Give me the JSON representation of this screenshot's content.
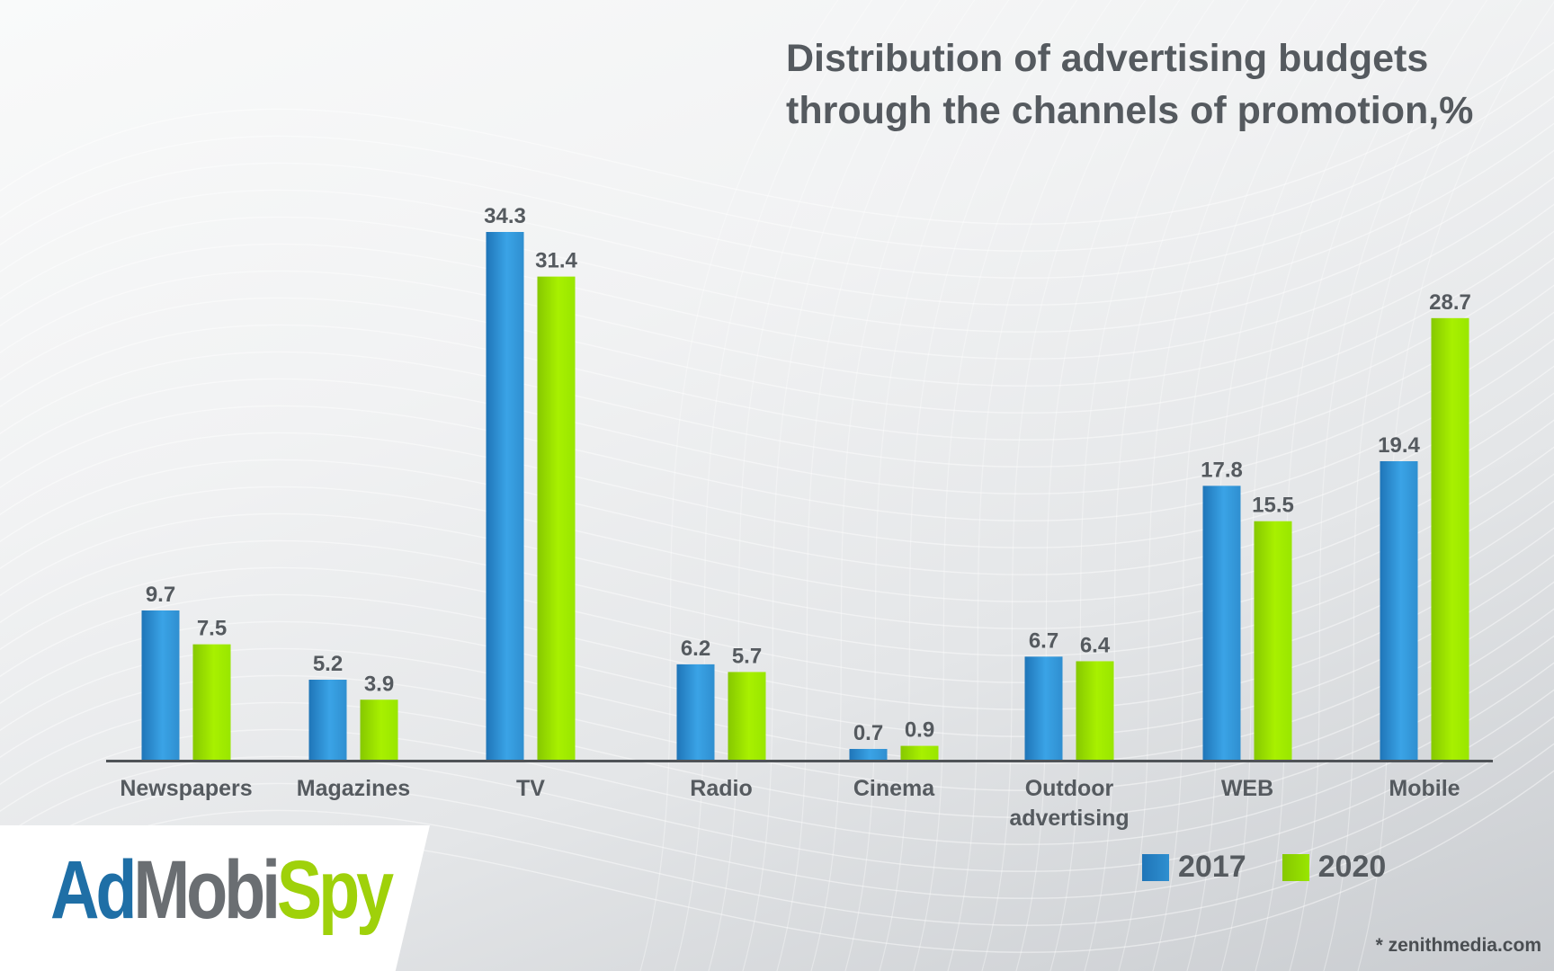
{
  "title_lines": [
    "Distribution of advertising budgets",
    "through the channels of promotion,%"
  ],
  "chart_data": {
    "type": "bar",
    "title": "Distribution of advertising budgets through the channels of promotion,%",
    "xlabel": "",
    "ylabel": "",
    "ylim": [
      0,
      34.3
    ],
    "grid": false,
    "legend_position": "bottom-right",
    "categories": [
      [
        "Newspapers"
      ],
      [
        "Magazines"
      ],
      [
        "TV"
      ],
      [
        "Radio"
      ],
      [
        "Cinema"
      ],
      [
        "Outdoor",
        "advertising"
      ],
      [
        "WEB"
      ],
      [
        "Mobile"
      ]
    ],
    "series": [
      {
        "name": "2017",
        "color": "#2f8fd0",
        "values": [
          9.7,
          5.2,
          34.3,
          6.2,
          0.7,
          6.7,
          17.8,
          19.4
        ],
        "labels": [
          "9.7",
          "5.2",
          "34.3",
          "6.2",
          "0.7",
          "6.7",
          "17.8",
          "19.4"
        ]
      },
      {
        "name": "2020",
        "color": "#99e600",
        "values": [
          7.5,
          3.9,
          31.4,
          5.7,
          0.9,
          6.4,
          15.5,
          28.7
        ],
        "labels": [
          "7.5",
          "3.9",
          "31.4",
          "5.7",
          "0.9",
          "6.4",
          "15.5",
          "28.7"
        ]
      }
    ]
  },
  "legend": [
    {
      "label": "2017",
      "color": "#2f8fd0"
    },
    {
      "label": "2020",
      "color": "#99e600"
    }
  ],
  "logo": {
    "ad": "Ad",
    "mobi": "Mobi",
    "spy": "Spy"
  },
  "source": "* zenithmedia.com"
}
